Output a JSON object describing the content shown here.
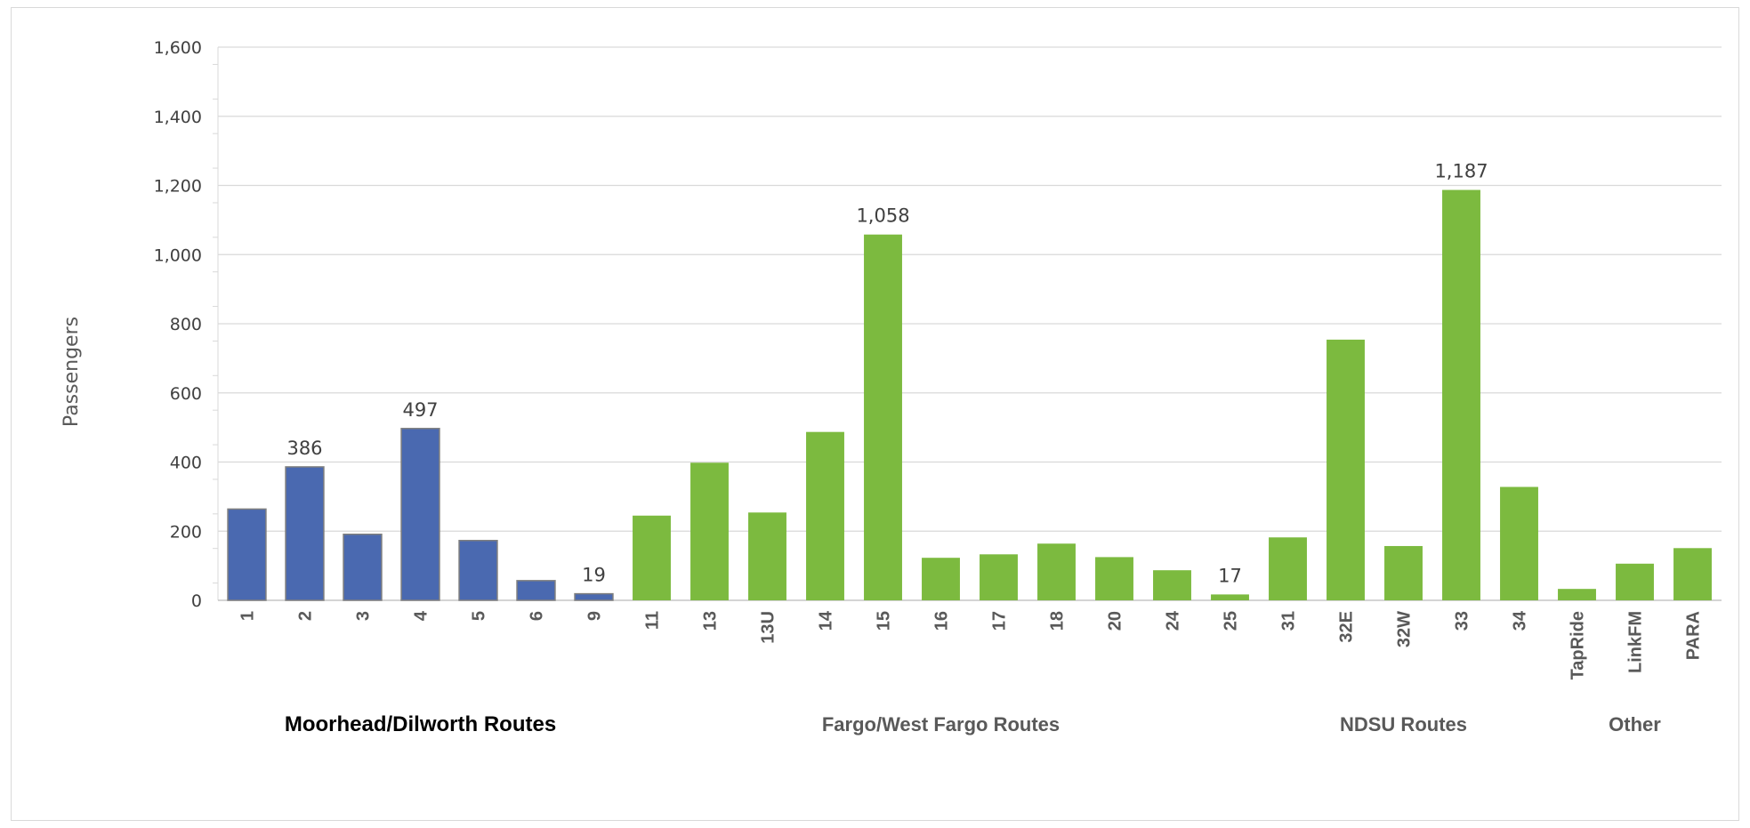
{
  "chart_data": {
    "type": "bar",
    "ylabel": "Passengers",
    "ylim": [
      0,
      1600
    ],
    "yticks": [
      "0",
      "200",
      "400",
      "600",
      "800",
      "1,000",
      "1,200",
      "1,400",
      "1,600"
    ],
    "grid": true,
    "categories": [
      "1",
      "2",
      "3",
      "4",
      "5",
      "6",
      "9",
      "11",
      "13",
      "13U",
      "14",
      "15",
      "16",
      "17",
      "18",
      "20",
      "24",
      "25",
      "31",
      "32E",
      "32W",
      "33",
      "34",
      "TapRide",
      "LinkFM",
      "PARA"
    ],
    "values": [
      264,
      386,
      191,
      497,
      173,
      57,
      19,
      245,
      398,
      254,
      487,
      1058,
      123,
      133,
      164,
      125,
      87,
      17,
      182,
      754,
      157,
      1187,
      328,
      33,
      106,
      151
    ],
    "data_labels": [
      {
        "index": 1,
        "text": "386"
      },
      {
        "index": 3,
        "text": "497"
      },
      {
        "index": 6,
        "text": "19"
      },
      {
        "index": 11,
        "text": "1,058"
      },
      {
        "index": 17,
        "text": "17"
      },
      {
        "index": 21,
        "text": "1,187"
      }
    ],
    "groups": [
      {
        "label": "Moorhead/Dilworth Routes",
        "start": 0,
        "end": 6,
        "color": "#4a69b0"
      },
      {
        "label": "Fargo/West Fargo Routes",
        "start": 7,
        "end": 17,
        "color": "#7cba3f"
      },
      {
        "label": "NDSU Routes",
        "start": 18,
        "end": 22,
        "color": "#7cba3f"
      },
      {
        "label": "Other",
        "start": 23,
        "end": 25,
        "color": "#7cba3f"
      }
    ]
  }
}
